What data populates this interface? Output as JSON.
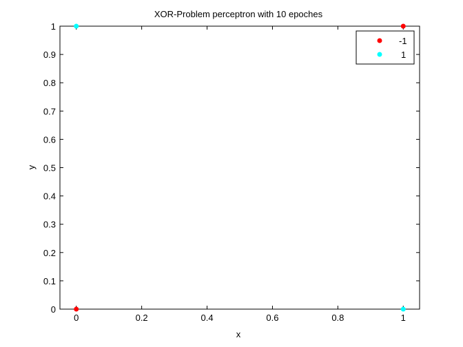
{
  "chart_data": {
    "type": "scatter",
    "title": "XOR-Problem perceptron with 10 epoches",
    "xlabel": "x",
    "ylabel": "y",
    "xlim": [
      -0.05,
      1.05
    ],
    "ylim": [
      0,
      1
    ],
    "xticks": [
      0,
      0.2,
      0.4,
      0.6,
      0.8,
      1
    ],
    "xtick_labels": [
      "0",
      "0.2",
      "0.4",
      "0.6",
      "0.8",
      "1"
    ],
    "yticks": [
      0,
      0.1,
      0.2,
      0.3,
      0.4,
      0.5,
      0.6,
      0.7,
      0.8,
      0.9,
      1
    ],
    "ytick_labels": [
      "0",
      "0.1",
      "0.2",
      "0.3",
      "0.4",
      "0.5",
      "0.6",
      "0.7",
      "0.8",
      "0.9",
      "1"
    ],
    "grid": false,
    "legend_position": "top-right",
    "series": [
      {
        "name": "-1",
        "color": "#ff0000",
        "points": [
          [
            0,
            0
          ],
          [
            1,
            1
          ]
        ]
      },
      {
        "name": "1",
        "color": "#00ffff",
        "points": [
          [
            0,
            1
          ],
          [
            1,
            0
          ]
        ]
      }
    ]
  }
}
